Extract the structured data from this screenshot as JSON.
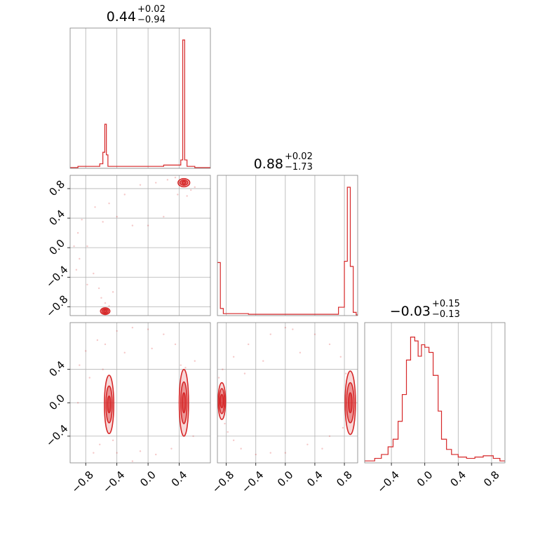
{
  "chart_data": {
    "type": "corner",
    "color": "#d62728",
    "parameters": [
      {
        "name": "",
        "median": "0.44",
        "plus": "+0.02",
        "minus": "−0.94",
        "range": [
          -1.0,
          0.8
        ]
      },
      {
        "name": "",
        "median": "0.88",
        "plus": "+0.02",
        "minus": "−1.73",
        "range": [
          -0.92,
          0.98
        ]
      },
      {
        "name": "",
        "median": "−0.03",
        "plus": "+0.15",
        "minus": "−0.13",
        "range": [
          -0.72,
          0.96
        ]
      }
    ],
    "tick_labels": [
      "−0.8",
      "−0.4",
      "0.0",
      "0.4",
      "0.8"
    ],
    "ticks": {
      "p0": [
        -0.8,
        -0.4,
        0.0,
        0.4
      ],
      "p1": [
        -0.8,
        -0.4,
        0.0,
        0.4,
        0.8
      ],
      "p2": [
        -0.4,
        0.0,
        0.4
      ],
      "p2_x": [
        -0.4,
        0.0,
        0.4,
        0.8
      ]
    },
    "grid": true,
    "histograms": [
      {
        "param": 0,
        "bins": [
          [
            -1.0,
            0.0
          ],
          [
            -0.9,
            0.01
          ],
          [
            -0.7,
            0.01
          ],
          [
            -0.62,
            0.03
          ],
          [
            -0.58,
            0.12
          ],
          [
            -0.555,
            0.34
          ],
          [
            -0.535,
            0.1
          ],
          [
            -0.515,
            0.01
          ],
          [
            -0.3,
            0.01
          ],
          [
            -0.2,
            0.01
          ],
          [
            -0.05,
            0.01
          ],
          [
            0.2,
            0.02
          ],
          [
            0.38,
            0.02
          ],
          [
            0.42,
            0.06
          ],
          [
            0.445,
            1.0
          ],
          [
            0.47,
            0.06
          ],
          [
            0.5,
            0.01
          ],
          [
            0.6,
            0.0
          ]
        ]
      },
      {
        "param": 1,
        "bins": [
          [
            -0.92,
            0.41
          ],
          [
            -0.88,
            0.05
          ],
          [
            -0.84,
            0.01
          ],
          [
            -0.5,
            0.005
          ],
          [
            -0.2,
            0.005
          ],
          [
            0.2,
            0.005
          ],
          [
            0.5,
            0.005
          ],
          [
            0.72,
            0.06
          ],
          [
            0.8,
            0.42
          ],
          [
            0.84,
            1.0
          ],
          [
            0.88,
            0.38
          ],
          [
            0.92,
            0.02
          ],
          [
            0.96,
            0.0
          ]
        ]
      },
      {
        "param": 2,
        "bins": [
          [
            -0.72,
            0.01
          ],
          [
            -0.6,
            0.03
          ],
          [
            -0.52,
            0.06
          ],
          [
            -0.44,
            0.12
          ],
          [
            -0.38,
            0.18
          ],
          [
            -0.32,
            0.32
          ],
          [
            -0.27,
            0.53
          ],
          [
            -0.22,
            0.8
          ],
          [
            -0.17,
            0.98
          ],
          [
            -0.12,
            0.95
          ],
          [
            -0.08,
            0.83
          ],
          [
            -0.04,
            0.92
          ],
          [
            0.0,
            0.9
          ],
          [
            0.05,
            0.86
          ],
          [
            0.1,
            0.68
          ],
          [
            0.16,
            0.4
          ],
          [
            0.2,
            0.18
          ],
          [
            0.26,
            0.1
          ],
          [
            0.32,
            0.06
          ],
          [
            0.4,
            0.04
          ],
          [
            0.5,
            0.03
          ],
          [
            0.6,
            0.04
          ],
          [
            0.7,
            0.05
          ],
          [
            0.82,
            0.03
          ],
          [
            0.9,
            0.01
          ]
        ]
      }
    ],
    "density_panels": [
      {
        "x": 0,
        "y": 1,
        "blobs": [
          {
            "cx": 0.46,
            "cy": 0.88,
            "rx": [
              0.025,
              0.05,
              0.075
            ],
            "ry": [
              0.02,
              0.035,
              0.055
            ]
          },
          {
            "cx": -0.55,
            "cy": -0.86,
            "rx": [
              0.02,
              0.04,
              0.06
            ],
            "ry": [
              0.015,
              0.03,
              0.045
            ]
          }
        ],
        "scatter": [
          [
            -0.55,
            -0.75
          ],
          [
            -0.6,
            -0.68
          ],
          [
            -0.5,
            -0.79
          ],
          [
            -0.63,
            -0.55
          ],
          [
            -0.7,
            -0.35
          ],
          [
            -0.78,
            0.02
          ],
          [
            -0.88,
            -0.15
          ],
          [
            -0.9,
            0.2
          ],
          [
            -0.85,
            0.38
          ],
          [
            -0.68,
            0.55
          ],
          [
            -0.5,
            0.6
          ],
          [
            -0.3,
            0.72
          ],
          [
            -0.1,
            0.85
          ],
          [
            0.1,
            0.88
          ],
          [
            0.25,
            0.92
          ],
          [
            0.35,
            0.95
          ],
          [
            0.55,
            0.78
          ],
          [
            0.6,
            0.82
          ],
          [
            -0.62,
            -0.98
          ],
          [
            -0.45,
            -0.6
          ],
          [
            -0.2,
            0.3
          ],
          [
            -0.4,
            0.42
          ],
          [
            0.38,
            0.72
          ],
          [
            0.5,
            0.7
          ],
          [
            -0.78,
            -0.5
          ],
          [
            -0.92,
            -0.3
          ],
          [
            -0.95,
            0.02
          ],
          [
            0.2,
            0.42
          ],
          [
            0.0,
            0.3
          ],
          [
            -0.58,
            0.35
          ]
        ]
      },
      {
        "x": 0,
        "y": 2,
        "blobs": [
          {
            "cx": -0.5,
            "cy": -0.02,
            "rx": [
              0.02,
              0.04,
              0.06
            ],
            "ry": [
              0.1,
              0.22,
              0.35
            ]
          },
          {
            "cx": 0.46,
            "cy": 0.0,
            "rx": [
              0.02,
              0.04,
              0.06
            ],
            "ry": [
              0.12,
              0.25,
              0.4
            ]
          }
        ],
        "scatter": [
          [
            -0.8,
            0.62
          ],
          [
            -0.65,
            0.75
          ],
          [
            -0.4,
            0.86
          ],
          [
            -0.2,
            0.9
          ],
          [
            0.0,
            0.88
          ],
          [
            0.2,
            0.82
          ],
          [
            0.35,
            0.7
          ],
          [
            0.42,
            0.45
          ],
          [
            -0.58,
            0.4
          ],
          [
            -0.62,
            -0.5
          ],
          [
            -0.4,
            -0.6
          ],
          [
            -0.1,
            -0.58
          ],
          [
            0.1,
            -0.62
          ],
          [
            0.3,
            -0.55
          ],
          [
            -0.75,
            0.3
          ],
          [
            -0.9,
            0.0
          ],
          [
            -0.88,
            0.45
          ],
          [
            -0.3,
            0.6
          ],
          [
            0.6,
            0.5
          ],
          [
            0.58,
            -0.4
          ],
          [
            -0.7,
            -0.6
          ],
          [
            0.48,
            0.42
          ],
          [
            -0.2,
            -0.7
          ],
          [
            -0.55,
            0.7
          ],
          [
            0.05,
            0.65
          ],
          [
            -0.45,
            -0.45
          ]
        ]
      },
      {
        "x": 1,
        "y": 2,
        "blobs": [
          {
            "cx": -0.86,
            "cy": 0.02,
            "rx": [
              0.02,
              0.035,
              0.05
            ],
            "ry": [
              0.08,
              0.15,
              0.22
            ]
          },
          {
            "cx": 0.88,
            "cy": 0.0,
            "rx": [
              0.025,
              0.05,
              0.07
            ],
            "ry": [
              0.12,
              0.24,
              0.38
            ]
          }
        ],
        "scatter": [
          [
            -0.78,
            -0.35
          ],
          [
            -0.82,
            -0.25
          ],
          [
            -0.7,
            -0.45
          ],
          [
            -0.6,
            -0.55
          ],
          [
            -0.4,
            -0.62
          ],
          [
            -0.2,
            -0.6
          ],
          [
            0.0,
            -0.6
          ],
          [
            0.3,
            -0.5
          ],
          [
            0.6,
            -0.4
          ],
          [
            0.78,
            -0.3
          ],
          [
            -0.7,
            0.55
          ],
          [
            -0.5,
            0.7
          ],
          [
            -0.2,
            0.82
          ],
          [
            0.1,
            0.88
          ],
          [
            0.4,
            0.82
          ],
          [
            0.6,
            0.7
          ],
          [
            0.75,
            0.55
          ],
          [
            0.82,
            0.35
          ],
          [
            -0.85,
            0.4
          ],
          [
            -0.9,
            0.3
          ],
          [
            0.2,
            0.6
          ],
          [
            -0.3,
            0.5
          ],
          [
            0.0,
            0.9
          ],
          [
            0.5,
            -0.55
          ],
          [
            -0.55,
            0.35
          ]
        ]
      }
    ]
  }
}
